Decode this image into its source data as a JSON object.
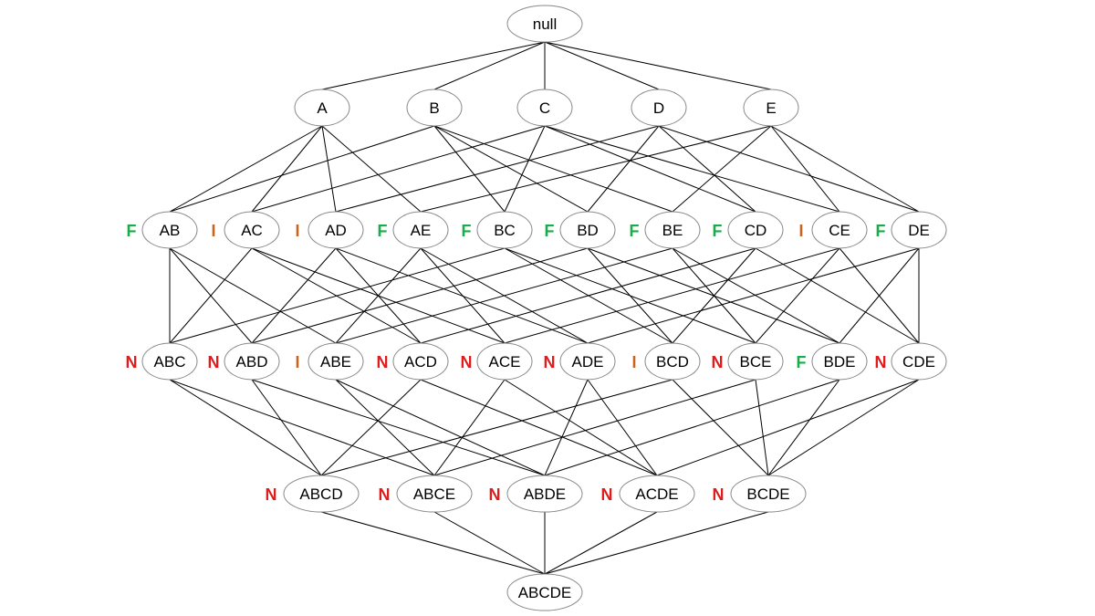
{
  "diagram": {
    "levels": [
      [
        {
          "id": "null",
          "label": "null",
          "mark": ""
        }
      ],
      [
        {
          "id": "A",
          "label": "A",
          "mark": ""
        },
        {
          "id": "B",
          "label": "B",
          "mark": ""
        },
        {
          "id": "C",
          "label": "C",
          "mark": ""
        },
        {
          "id": "D",
          "label": "D",
          "mark": ""
        },
        {
          "id": "E",
          "label": "E",
          "mark": ""
        }
      ],
      [
        {
          "id": "AB",
          "label": "AB",
          "mark": "F"
        },
        {
          "id": "AC",
          "label": "AC",
          "mark": "I"
        },
        {
          "id": "AD",
          "label": "AD",
          "mark": "I"
        },
        {
          "id": "AE",
          "label": "AE",
          "mark": "F"
        },
        {
          "id": "BC",
          "label": "BC",
          "mark": "F"
        },
        {
          "id": "BD",
          "label": "BD",
          "mark": "F"
        },
        {
          "id": "BE",
          "label": "BE",
          "mark": "F"
        },
        {
          "id": "CD",
          "label": "CD",
          "mark": "F"
        },
        {
          "id": "CE",
          "label": "CE",
          "mark": "I"
        },
        {
          "id": "DE",
          "label": "DE",
          "mark": "F"
        }
      ],
      [
        {
          "id": "ABC",
          "label": "ABC",
          "mark": "N"
        },
        {
          "id": "ABD",
          "label": "ABD",
          "mark": "N"
        },
        {
          "id": "ABE",
          "label": "ABE",
          "mark": "I"
        },
        {
          "id": "ACD",
          "label": "ACD",
          "mark": "N"
        },
        {
          "id": "ACE",
          "label": "ACE",
          "mark": "N"
        },
        {
          "id": "ADE",
          "label": "ADE",
          "mark": "N"
        },
        {
          "id": "BCD",
          "label": "BCD",
          "mark": "I"
        },
        {
          "id": "BCE",
          "label": "BCE",
          "mark": "N"
        },
        {
          "id": "BDE",
          "label": "BDE",
          "mark": "F"
        },
        {
          "id": "CDE",
          "label": "CDE",
          "mark": "N"
        }
      ],
      [
        {
          "id": "ABCD",
          "label": "ABCD",
          "mark": "N"
        },
        {
          "id": "ABCE",
          "label": "ABCE",
          "mark": "N"
        },
        {
          "id": "ABDE",
          "label": "ABDE",
          "mark": "N"
        },
        {
          "id": "ACDE",
          "label": "ACDE",
          "mark": "N"
        },
        {
          "id": "BCDE",
          "label": "BCDE",
          "mark": "N"
        }
      ],
      [
        {
          "id": "ABCDE",
          "label": "ABCDE",
          "mark": ""
        }
      ]
    ],
    "mark_colors": {
      "F": "#1aab4b",
      "I": "#c8641e",
      "N": "#e01b1b"
    }
  }
}
